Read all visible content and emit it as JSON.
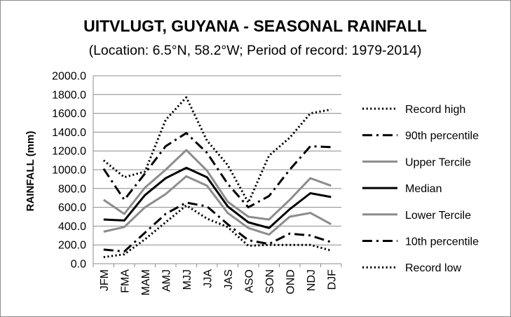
{
  "chart_data": {
    "type": "line",
    "title": "UITVLUGT, GUYANA - SEASONAL RAINFALL",
    "subtitle": "(Location: 6.5°N, 58.2°W; Period of record: 1979-2014)",
    "ylabel": "RAINFALL (mm)",
    "xlabel": "",
    "ylim": [
      0,
      2000
    ],
    "yticks": [
      "0.0",
      "200.0",
      "400.0",
      "600.0",
      "800.0",
      "1000.0",
      "1200.0",
      "1400.0",
      "1600.0",
      "1800.0",
      "2000.0"
    ],
    "categories": [
      "JFM",
      "FMA",
      "MAM",
      "AMJ",
      "MJJ",
      "JJA",
      "JAS",
      "ASO",
      "SON",
      "OND",
      "NDJ",
      "DJF"
    ],
    "grid": true,
    "legend_position": "right",
    "series": [
      {
        "name": "Record high",
        "values": [
          1100,
          920,
          980,
          1530,
          1770,
          1310,
          1050,
          650,
          1150,
          1340,
          1600,
          1640
        ],
        "color": "#000000",
        "style": "dotted"
      },
      {
        "name": "90th percentile",
        "values": [
          1010,
          680,
          960,
          1250,
          1390,
          1180,
          850,
          600,
          720,
          1000,
          1250,
          1240
        ],
        "color": "#000000",
        "style": "dashdot"
      },
      {
        "name": "Upper Tercile",
        "values": [
          680,
          530,
          810,
          1000,
          1210,
          990,
          660,
          500,
          470,
          680,
          910,
          830
        ],
        "color": "#8c8c8c",
        "style": "solid"
      },
      {
        "name": "Median",
        "values": [
          470,
          460,
          730,
          910,
          1020,
          920,
          610,
          440,
          380,
          580,
          750,
          710
        ],
        "color": "#000000",
        "style": "solid"
      },
      {
        "name": "Lower Tercile",
        "values": [
          340,
          390,
          600,
          740,
          930,
          830,
          540,
          380,
          310,
          500,
          540,
          420
        ],
        "color": "#8c8c8c",
        "style": "solid"
      },
      {
        "name": "10th percentile",
        "values": [
          150,
          130,
          330,
          530,
          650,
          610,
          420,
          250,
          210,
          320,
          300,
          230
        ],
        "color": "#000000",
        "style": "dashdot"
      },
      {
        "name": "Record low",
        "values": [
          70,
          100,
          260,
          440,
          620,
          480,
          390,
          190,
          200,
          200,
          200,
          140
        ],
        "color": "#000000",
        "style": "dotted"
      }
    ]
  }
}
